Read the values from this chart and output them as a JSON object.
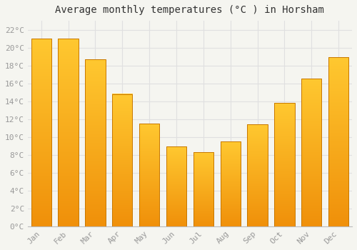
{
  "title": "Average monthly temperatures (°C ) in Horsham",
  "months": [
    "Jan",
    "Feb",
    "Mar",
    "Apr",
    "May",
    "Jun",
    "Jul",
    "Aug",
    "Sep",
    "Oct",
    "Nov",
    "Dec"
  ],
  "values": [
    21.0,
    21.0,
    18.7,
    14.8,
    11.5,
    8.9,
    8.3,
    9.5,
    11.4,
    13.8,
    16.5,
    18.9
  ],
  "bar_color_top": "#FFC830",
  "bar_color_bottom": "#F0900A",
  "bar_edge_color": "#C87800",
  "background_color": "#f5f5f0",
  "plot_bg_color": "#f5f5f0",
  "grid_color": "#e0e0e0",
  "ytick_labels": [
    "0°C",
    "2°C",
    "4°C",
    "6°C",
    "8°C",
    "10°C",
    "12°C",
    "14°C",
    "16°C",
    "18°C",
    "20°C",
    "22°C"
  ],
  "ytick_values": [
    0,
    2,
    4,
    6,
    8,
    10,
    12,
    14,
    16,
    18,
    20,
    22
  ],
  "ylim": [
    0,
    23
  ],
  "title_fontsize": 10,
  "tick_fontsize": 8,
  "tick_color": "#999999",
  "title_color": "#333333"
}
